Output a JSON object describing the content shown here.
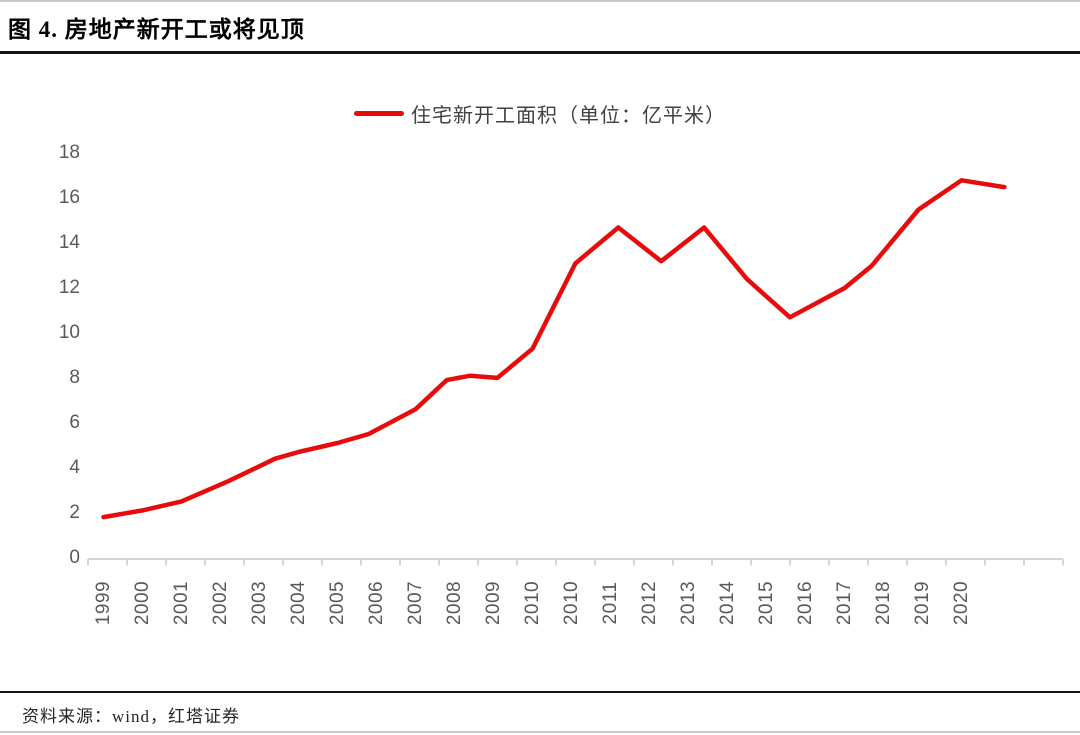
{
  "page": {
    "title": "图 4. 房地产新开工或将见顶",
    "source_text": "资料来源：wind，红塔证券"
  },
  "chart_data": {
    "type": "line",
    "title": "图 4. 房地产新开工或将见顶",
    "legend_label": "住宅新开工面积（单位：亿平米）",
    "legend_position": "top-center",
    "grid": false,
    "line_color": "#e60c0c",
    "label_color": "#595959",
    "axis_color": "#c9c9c9",
    "ylim": [
      0,
      18
    ],
    "y_ticks": [
      0,
      2,
      4,
      6,
      8,
      10,
      12,
      14,
      16,
      18
    ],
    "x_tick_labels": [
      "1999",
      "2000",
      "2001",
      "2002",
      "2003",
      "2004",
      "2005",
      "2006",
      "2007",
      "2008",
      "2009",
      "2010",
      "2010",
      "2011",
      "2012",
      "2013",
      "2014",
      "2015",
      "2016",
      "2017",
      "2018",
      "2019",
      "2020"
    ],
    "x_note": "line continues past the last labeled tick (2020)",
    "series": [
      {
        "name": "住宅新开工面积",
        "unit": "亿平米",
        "color": "#e60c0c",
        "x_unit_note": "x = position in x-axis label-index units (0 = 1999 tick, 22 = 2020 tick)",
        "points": [
          [
            0,
            1.8
          ],
          [
            1,
            2.1
          ],
          [
            2,
            2.5
          ],
          [
            3.2,
            3.4
          ],
          [
            4.4,
            4.4
          ],
          [
            5,
            4.7
          ],
          [
            6,
            5.1
          ],
          [
            6.8,
            5.5
          ],
          [
            8,
            6.6
          ],
          [
            8.8,
            7.9
          ],
          [
            9.4,
            8.1
          ],
          [
            10.1,
            8.0
          ],
          [
            11,
            9.3
          ],
          [
            12.1,
            13.1
          ],
          [
            13.2,
            14.7
          ],
          [
            14.3,
            13.2
          ],
          [
            15.4,
            14.7
          ],
          [
            16.5,
            12.4
          ],
          [
            17.6,
            10.7
          ],
          [
            19,
            12.0
          ],
          [
            19.7,
            13.0
          ],
          [
            20.9,
            15.5
          ],
          [
            22,
            16.8
          ],
          [
            23.1,
            16.5
          ]
        ]
      }
    ]
  }
}
